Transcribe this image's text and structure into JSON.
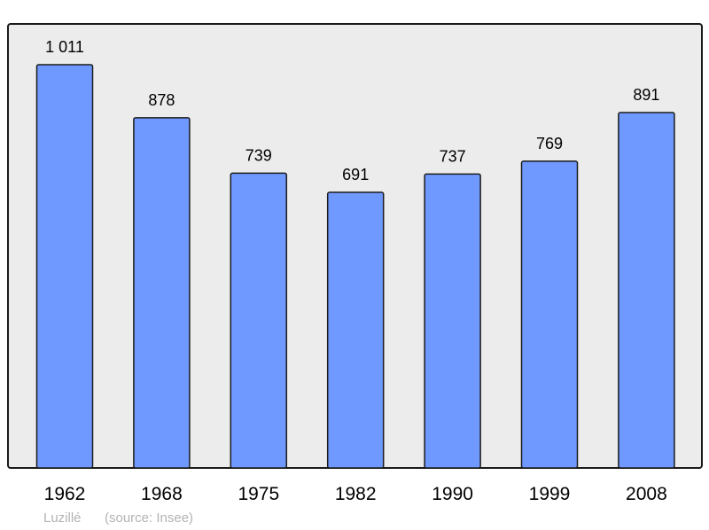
{
  "chart_data": {
    "type": "bar",
    "categories": [
      "1962",
      "1968",
      "1975",
      "1982",
      "1990",
      "1999",
      "2008"
    ],
    "values": [
      1011,
      878,
      739,
      691,
      737,
      769,
      891
    ],
    "value_labels": [
      "1 011",
      "878",
      "739",
      "691",
      "737",
      "769",
      "891"
    ],
    "title": "",
    "xlabel": "",
    "ylabel": "",
    "ylim": [
      0,
      1011
    ],
    "grid": false,
    "bar_color": "#7099ff",
    "plot_background": "#ececec",
    "caption": {
      "place": "Luzillé",
      "source": "(source: Insee)"
    }
  }
}
